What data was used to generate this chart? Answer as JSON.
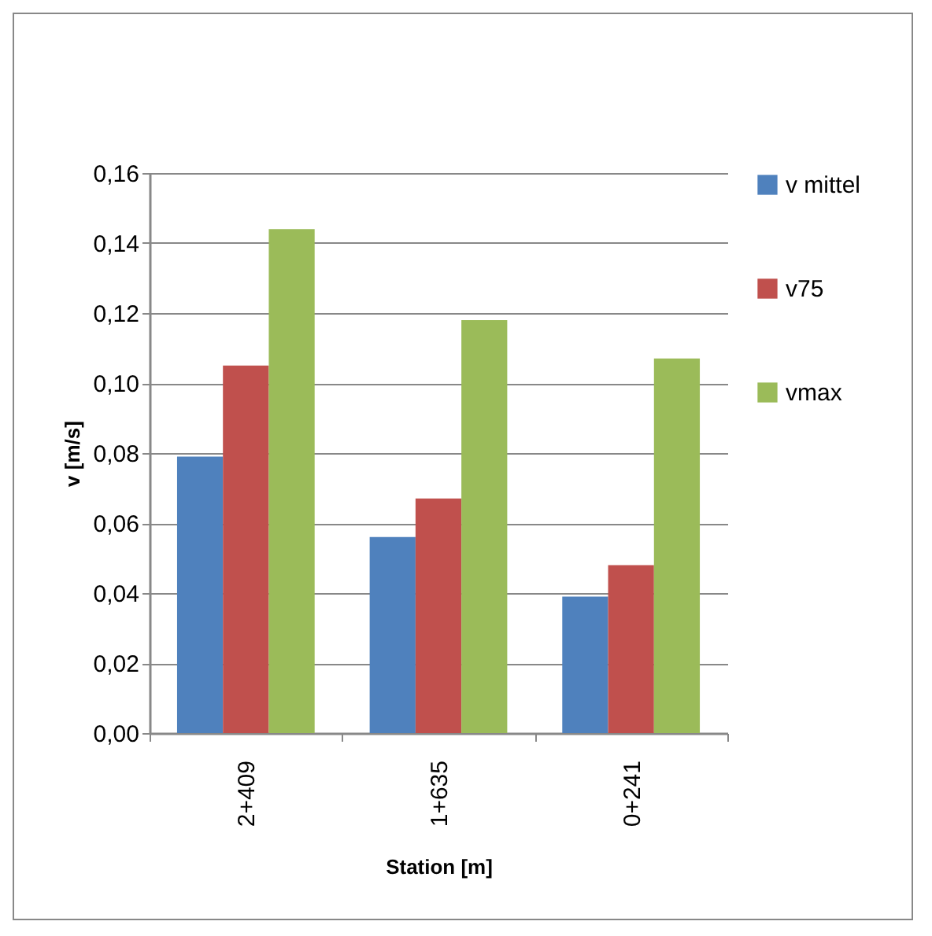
{
  "chart_data": {
    "type": "bar",
    "xlabel": "Station [m]",
    "ylabel": "v [m/s]",
    "categories": [
      "2+409",
      "1+635",
      "0+241"
    ],
    "series": [
      {
        "name": "v mittel",
        "color": "#4f81bd",
        "values": [
          0.079,
          0.056,
          0.039
        ]
      },
      {
        "name": "v75",
        "color": "#c0504d",
        "values": [
          0.105,
          0.067,
          0.048
        ]
      },
      {
        "name": "vmax",
        "color": "#9bbb59",
        "values": [
          0.144,
          0.118,
          0.107
        ]
      }
    ],
    "ylim": [
      0,
      0.16
    ],
    "yticks": [
      {
        "value": 0,
        "label": "0,00"
      },
      {
        "value": 0.02,
        "label": "0,02"
      },
      {
        "value": 0.04,
        "label": "0,04"
      },
      {
        "value": 0.06,
        "label": "0,06"
      },
      {
        "value": 0.08,
        "label": "0,08"
      },
      {
        "value": 0.1,
        "label": "0,10"
      },
      {
        "value": 0.12,
        "label": "0,12"
      },
      {
        "value": 0.14,
        "label": "0,14"
      },
      {
        "value": 0.16,
        "label": "0,16"
      }
    ],
    "grid": "y",
    "legend": "right"
  }
}
